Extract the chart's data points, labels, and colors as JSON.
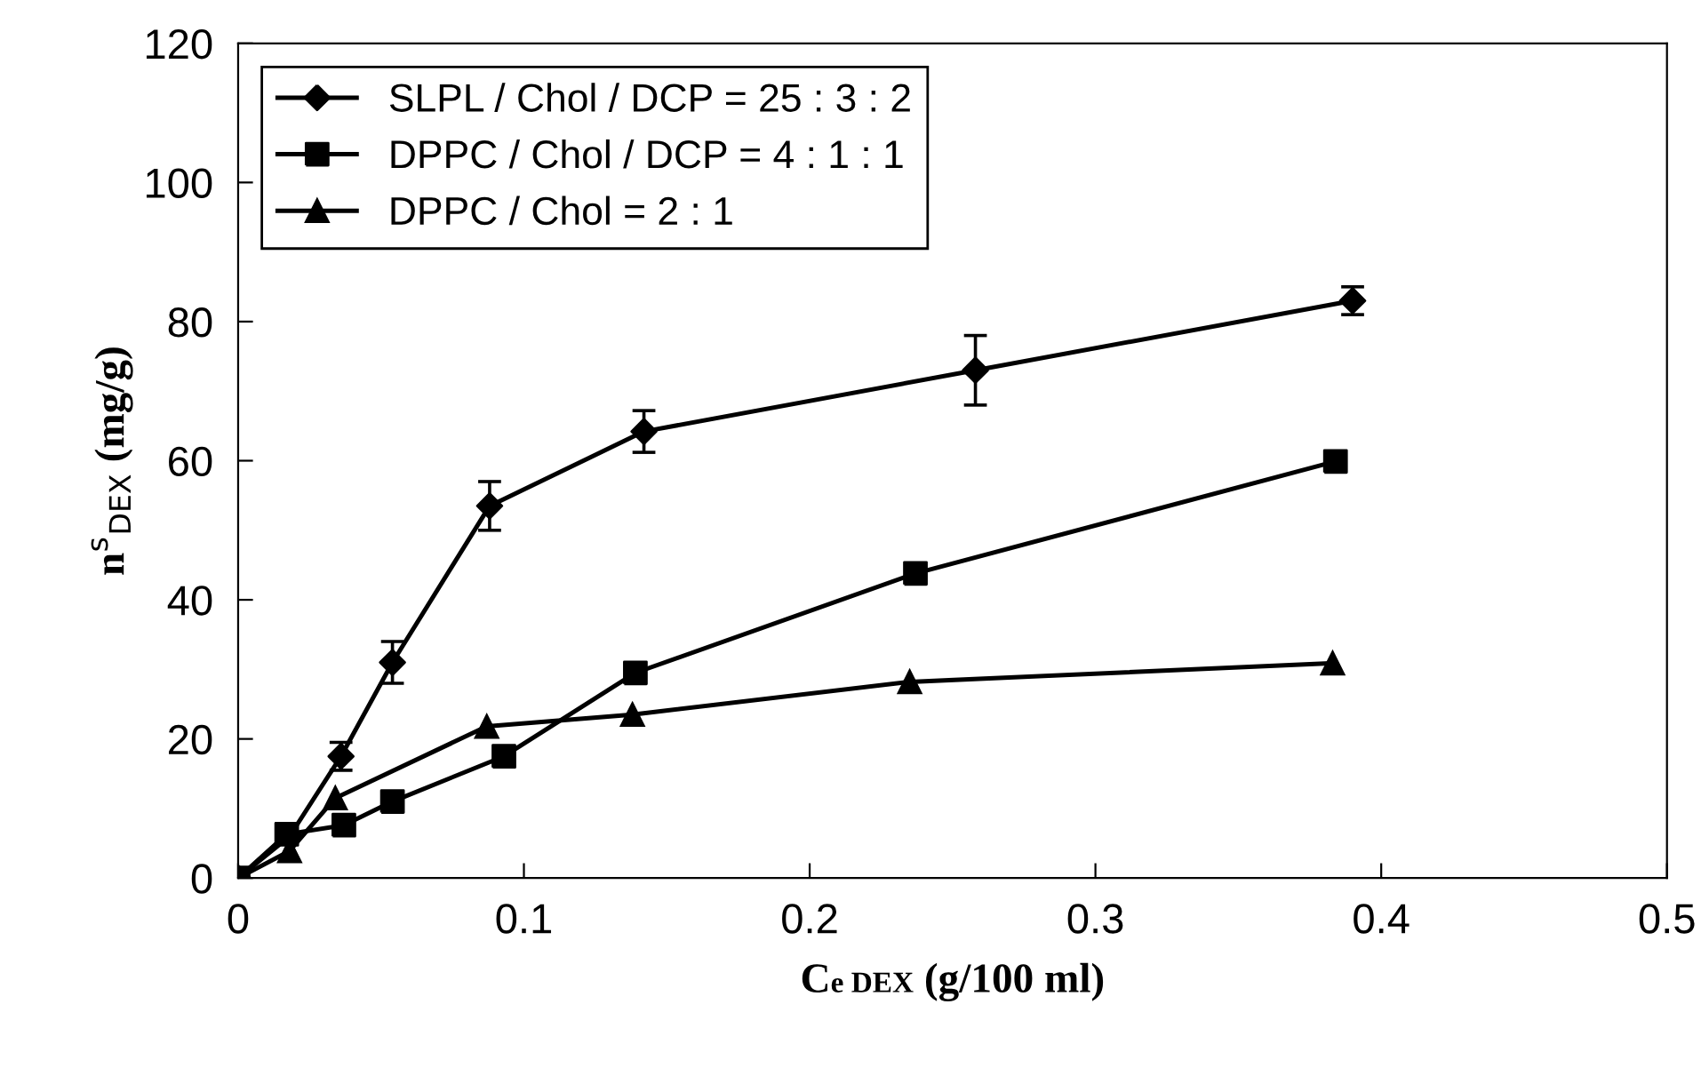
{
  "chart_data": {
    "type": "line",
    "xlabel": "C$_{e DEX}$ (g/100 ml)",
    "ylabel": "n$^{s}$$_{DEX}$ (mg/g)",
    "xlim": [
      0,
      0.5
    ],
    "xticks": [
      0,
      0.1,
      0.2,
      0.3,
      0.4,
      0.5
    ],
    "ylim": [
      0,
      120
    ],
    "yticks": [
      0,
      20,
      40,
      60,
      80,
      100,
      120
    ],
    "grid": false,
    "legend": "top left",
    "series": [
      {
        "name": "SLPL / Chol / DCP = 25 : 3 : 2",
        "color": "#000000",
        "marker": "diamond",
        "x": [
          0,
          0.018,
          0.036,
          0.054,
          0.088,
          0.142,
          0.258,
          0.39
        ],
        "values": [
          0,
          6,
          17.5,
          31,
          53.5,
          64.2,
          73,
          83
        ],
        "errors": [
          null,
          null,
          2,
          3,
          3.5,
          3,
          5,
          2
        ]
      },
      {
        "name": "DPPC / Chol / DCP = 4 : 1 : 1",
        "color": "#000000",
        "marker": "square",
        "x": [
          0,
          0.017,
          0.037,
          0.054,
          0.093,
          0.139,
          0.237,
          0.384
        ],
        "values": [
          0,
          6.3,
          7.6,
          11,
          17.5,
          29.5,
          43.8,
          59.9
        ]
      },
      {
        "name": "DPPC / Chol = 2 : 1",
        "color": "#000000",
        "marker": "triangle",
        "x": [
          0,
          0.018,
          0.034,
          0.087,
          0.138,
          0.235,
          0.383
        ],
        "values": [
          0,
          3.9,
          11.5,
          21.8,
          23.5,
          28.2,
          30.9
        ]
      }
    ]
  }
}
